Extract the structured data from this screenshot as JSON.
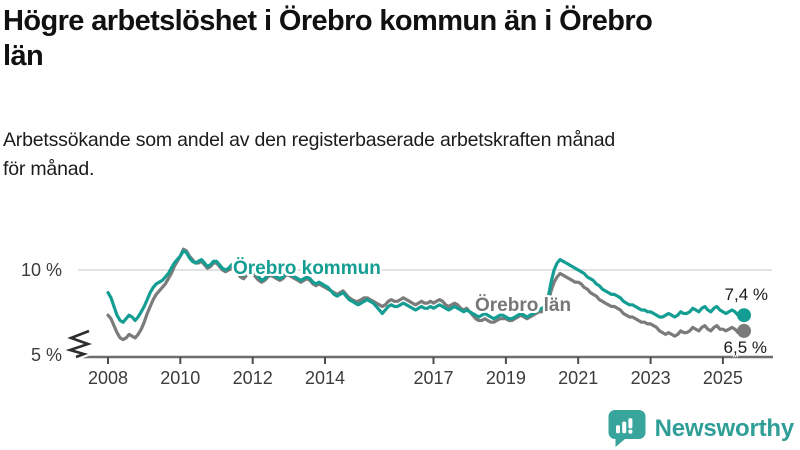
{
  "header": {
    "title": "Högre arbetslöshet i Örebro kommun än i Örebro\nlän",
    "subtitle": "Arbetssökande som andel av den registerbaserade arbetskraften månad\nför månad."
  },
  "chart_data": {
    "type": "line",
    "x_start": "2008-01",
    "x_interval": "monthly",
    "x_end": "2025-08",
    "xticks": [
      "2008",
      "2010",
      "2012",
      "2014",
      "2017",
      "2019",
      "2021",
      "2023",
      "2025"
    ],
    "yticks": [
      {
        "value": 5,
        "label": "5 %"
      },
      {
        "value": 10,
        "label": "10 %"
      }
    ],
    "ylim": [
      4.8,
      11.7
    ],
    "grid": "horizontal gridline at 10 % only",
    "axis_break": "y-axis truncated below 5 % (zigzag break symbol at axis origin)",
    "legend_position": "inline labels on lines",
    "series": [
      {
        "name": "Örebro kommun",
        "color": "#149e93",
        "end_label": "7,4 %",
        "end_value": 7.4,
        "values": [
          8.7,
          8.4,
          7.9,
          7.4,
          7.1,
          7.0,
          7.2,
          7.4,
          7.3,
          7.1,
          7.3,
          7.6,
          7.9,
          8.3,
          8.7,
          9.0,
          9.2,
          9.3,
          9.4,
          9.6,
          9.8,
          10.1,
          10.4,
          10.6,
          10.8,
          11.1,
          11.0,
          10.7,
          10.5,
          10.4,
          10.5,
          10.6,
          10.4,
          10.2,
          10.3,
          10.5,
          10.5,
          10.3,
          10.1,
          10.0,
          10.1,
          10.3,
          10.2,
          10.0,
          9.8,
          9.7,
          9.9,
          10.1,
          10.0,
          9.8,
          9.6,
          9.4,
          9.5,
          9.7,
          9.8,
          9.7,
          9.6,
          9.5,
          9.6,
          9.8,
          9.8,
          9.7,
          9.6,
          9.5,
          9.4,
          9.5,
          9.6,
          9.5,
          9.3,
          9.2,
          9.3,
          9.2,
          9.1,
          9.0,
          8.8,
          8.6,
          8.5,
          8.6,
          8.7,
          8.5,
          8.3,
          8.2,
          8.1,
          8.0,
          8.1,
          8.2,
          8.3,
          8.2,
          8.1,
          7.9,
          7.7,
          7.5,
          7.7,
          7.9,
          8.0,
          7.9,
          7.9,
          8.0,
          8.1,
          8.0,
          7.9,
          7.8,
          7.7,
          7.8,
          7.9,
          7.8,
          7.8,
          7.9,
          7.8,
          7.9,
          8.0,
          7.9,
          7.8,
          7.7,
          7.8,
          7.9,
          7.8,
          7.7,
          7.6,
          7.7,
          7.6,
          7.5,
          7.4,
          7.3,
          7.4,
          7.5,
          7.4,
          7.3,
          7.2,
          7.3,
          7.4,
          7.4,
          7.3,
          7.2,
          7.2,
          7.3,
          7.4,
          7.5,
          7.4,
          7.3,
          7.4,
          7.5,
          7.6,
          7.7,
          7.8,
          7.9,
          8.4,
          9.3,
          10.0,
          10.4,
          10.6,
          10.5,
          10.4,
          10.3,
          10.2,
          10.1,
          10.0,
          9.9,
          9.8,
          9.6,
          9.5,
          9.4,
          9.2,
          9.1,
          8.9,
          8.8,
          8.7,
          8.6,
          8.6,
          8.5,
          8.4,
          8.2,
          8.1,
          8.0,
          8.0,
          7.9,
          7.8,
          7.7,
          7.7,
          7.6,
          7.6,
          7.5,
          7.4,
          7.3,
          7.3,
          7.4,
          7.5,
          7.4,
          7.3,
          7.4,
          7.6,
          7.5,
          7.5,
          7.6,
          7.8,
          7.7,
          7.6,
          7.8,
          7.9,
          7.7,
          7.6,
          7.8,
          7.9,
          7.7,
          7.6,
          7.5,
          7.6,
          7.7,
          7.6,
          7.4,
          7.3,
          7.4
        ]
      },
      {
        "name": "Örebro län",
        "color": "#7b7b7b",
        "end_label": "6,5 %",
        "end_value": 6.5,
        "values": [
          7.4,
          7.2,
          6.8,
          6.4,
          6.1,
          6.0,
          6.1,
          6.3,
          6.2,
          6.1,
          6.3,
          6.6,
          7.0,
          7.5,
          7.9,
          8.3,
          8.6,
          8.8,
          9.0,
          9.2,
          9.5,
          9.8,
          10.2,
          10.5,
          10.8,
          11.2,
          11.1,
          10.8,
          10.6,
          10.4,
          10.4,
          10.5,
          10.3,
          10.1,
          10.2,
          10.4,
          10.4,
          10.2,
          10.0,
          9.9,
          10.0,
          10.1,
          10.0,
          9.8,
          9.6,
          9.5,
          9.7,
          9.9,
          9.8,
          9.6,
          9.4,
          9.3,
          9.4,
          9.6,
          9.7,
          9.6,
          9.5,
          9.4,
          9.5,
          9.7,
          9.7,
          9.6,
          9.5,
          9.4,
          9.3,
          9.4,
          9.5,
          9.4,
          9.2,
          9.1,
          9.2,
          9.1,
          9.0,
          8.9,
          8.8,
          8.7,
          8.6,
          8.7,
          8.8,
          8.6,
          8.4,
          8.3,
          8.2,
          8.2,
          8.3,
          8.4,
          8.4,
          8.3,
          8.2,
          8.1,
          8.0,
          7.9,
          8.0,
          8.2,
          8.3,
          8.2,
          8.2,
          8.3,
          8.4,
          8.3,
          8.2,
          8.1,
          8.0,
          8.1,
          8.2,
          8.1,
          8.1,
          8.2,
          8.1,
          8.2,
          8.3,
          8.2,
          8.0,
          7.9,
          8.0,
          8.1,
          8.0,
          7.8,
          7.7,
          7.8,
          7.6,
          7.4,
          7.2,
          7.1,
          7.1,
          7.2,
          7.1,
          7.0,
          7.0,
          7.1,
          7.2,
          7.2,
          7.2,
          7.1,
          7.1,
          7.2,
          7.3,
          7.4,
          7.3,
          7.2,
          7.3,
          7.4,
          7.5,
          7.6,
          7.6,
          7.7,
          8.1,
          8.8,
          9.3,
          9.6,
          9.8,
          9.7,
          9.6,
          9.5,
          9.4,
          9.3,
          9.3,
          9.2,
          9.0,
          8.9,
          8.7,
          8.6,
          8.5,
          8.3,
          8.2,
          8.1,
          8.0,
          7.9,
          7.9,
          7.8,
          7.7,
          7.5,
          7.4,
          7.3,
          7.3,
          7.2,
          7.1,
          7.0,
          7.0,
          6.9,
          6.9,
          6.8,
          6.7,
          6.5,
          6.4,
          6.3,
          6.4,
          6.3,
          6.2,
          6.3,
          6.5,
          6.4,
          6.4,
          6.5,
          6.7,
          6.6,
          6.5,
          6.7,
          6.8,
          6.6,
          6.5,
          6.7,
          6.8,
          6.6,
          6.6,
          6.5,
          6.6,
          6.7,
          6.6,
          6.4,
          6.4,
          6.5
        ]
      }
    ],
    "colors": {
      "gridline": "#d8d8d8",
      "axis": "#6e6e6e",
      "tick": "#4d4d4d",
      "tick_label": "#3c3c3c",
      "end_label": "#1a1a1a"
    }
  },
  "footer": {
    "brand": "Newsworthy",
    "brand_color": "#2f9e97",
    "icon_color": "#38a59d"
  }
}
